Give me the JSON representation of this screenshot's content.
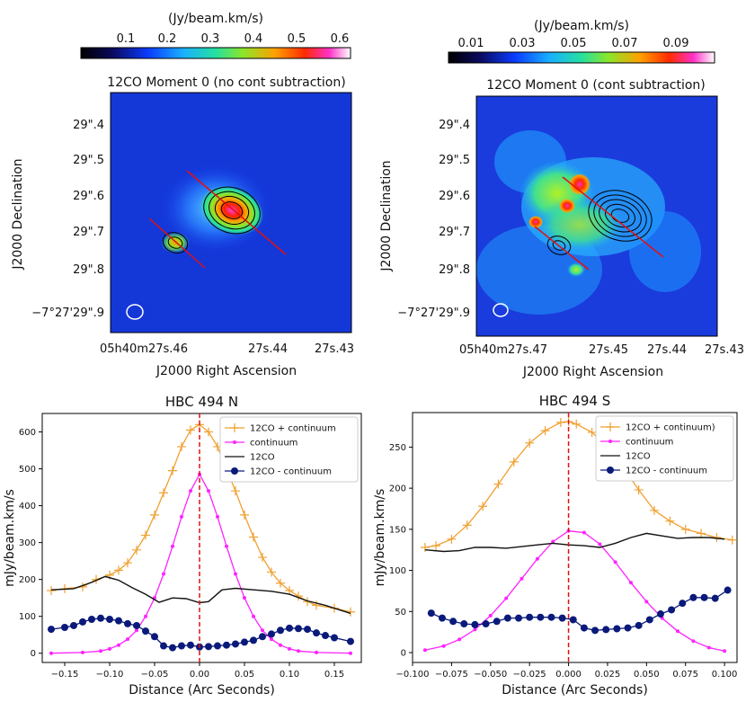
{
  "colorbar_unit": "(Jy/beam.km/s)",
  "colorbars": [
    {
      "ticks": [
        "0.1",
        "0.2",
        "0.3",
        "0.4",
        "0.5",
        "0.6"
      ]
    },
    {
      "ticks": [
        "0.01",
        "0.03",
        "0.05",
        "0.07",
        "0.09"
      ]
    }
  ],
  "maps": [
    {
      "title": "12CO Moment 0 (no cont subtraction)",
      "dec_ticks": [
        "29\".4",
        "29\".5",
        "29\".6",
        "29\".7",
        "29\".8",
        "−7°27'29\".9"
      ],
      "ra_ticks": [
        "05h40m27s.46",
        "27s.44",
        "27s.43"
      ],
      "xlabel": "J2000 Right Ascension",
      "ylabel": "J2000 Declination"
    },
    {
      "title": "12CO Moment 0 (cont subtraction)",
      "dec_ticks": [
        "29\".4",
        "29\".5",
        "29\".6",
        "29\".7",
        "29\".8",
        "−7°27'29\".9"
      ],
      "ra_ticks": [
        "05h40m27s.47",
        "27s.45",
        "27s.44",
        "27s.43"
      ],
      "xlabel": "J2000 Right Ascension",
      "ylabel": "J2000 Declination"
    }
  ],
  "colors": {
    "orange": "#f0a030",
    "magenta": "#ff22ff",
    "black": "#111111",
    "navy": "#0a1a7a",
    "red": "#e01010"
  },
  "chart_data": [
    {
      "type": "line",
      "title": "HBC 494 N",
      "xlabel": "Distance (Arc Seconds)",
      "ylabel": "mJy/beam.km/s",
      "xlim": [
        -0.175,
        0.18
      ],
      "ylim": [
        -25,
        650
      ],
      "xticks": [
        -0.15,
        -0.1,
        -0.05,
        0.0,
        0.05,
        0.1,
        0.15
      ],
      "xtick_labels": [
        "−0.15",
        "−0.10",
        "−0.05",
        "0.00",
        "0.05",
        "0.10",
        "0.15"
      ],
      "yticks": [
        0,
        100,
        200,
        300,
        400,
        500,
        600
      ],
      "ytick_labels": [
        "0",
        "100",
        "200",
        "300",
        "400",
        "500",
        "600"
      ],
      "vline_x": 0,
      "series": [
        {
          "name": "12CO + continuum",
          "style": "plus",
          "color": "#f0a030",
          "x": [
            -0.165,
            -0.15,
            -0.13,
            -0.115,
            -0.1,
            -0.09,
            -0.08,
            -0.07,
            -0.06,
            -0.05,
            -0.04,
            -0.03,
            -0.02,
            -0.01,
            0.0,
            0.01,
            0.02,
            0.03,
            0.04,
            0.05,
            0.06,
            0.07,
            0.08,
            0.09,
            0.1,
            0.11,
            0.12,
            0.13,
            0.15,
            0.168
          ],
          "y": [
            170,
            175,
            180,
            200,
            212,
            225,
            245,
            280,
            320,
            375,
            435,
            495,
            560,
            605,
            620,
            600,
            560,
            500,
            440,
            375,
            315,
            260,
            220,
            190,
            170,
            155,
            140,
            130,
            122,
            112
          ]
        },
        {
          "name": "continuum",
          "style": "smalldot",
          "color": "#ff22ff",
          "x": [
            -0.165,
            -0.13,
            -0.11,
            -0.1,
            -0.09,
            -0.08,
            -0.07,
            -0.06,
            -0.05,
            -0.04,
            -0.03,
            -0.02,
            -0.01,
            0.0,
            0.01,
            0.02,
            0.03,
            0.04,
            0.05,
            0.06,
            0.07,
            0.08,
            0.09,
            0.1,
            0.11,
            0.13,
            0.168
          ],
          "y": [
            0,
            2,
            6,
            12,
            22,
            38,
            62,
            100,
            150,
            215,
            290,
            370,
            440,
            485,
            440,
            370,
            290,
            215,
            150,
            100,
            62,
            38,
            22,
            12,
            6,
            2,
            0
          ]
        },
        {
          "name": "12CO",
          "style": "line",
          "color": "#111111",
          "x": [
            -0.165,
            -0.14,
            -0.12,
            -0.105,
            -0.09,
            -0.075,
            -0.06,
            -0.045,
            -0.03,
            -0.015,
            0.0,
            0.01,
            0.025,
            0.04,
            0.06,
            0.08,
            0.1,
            0.12,
            0.14,
            0.168
          ],
          "y": [
            172,
            175,
            192,
            208,
            198,
            178,
            160,
            138,
            150,
            148,
            137,
            140,
            172,
            176,
            172,
            168,
            160,
            142,
            130,
            108
          ]
        },
        {
          "name": "12CO - continuum",
          "style": "bigdot",
          "color": "#0a1a7a",
          "x": [
            -0.165,
            -0.15,
            -0.14,
            -0.13,
            -0.12,
            -0.11,
            -0.1,
            -0.09,
            -0.08,
            -0.07,
            -0.06,
            -0.05,
            -0.04,
            -0.03,
            -0.02,
            -0.01,
            0.0,
            0.01,
            0.02,
            0.03,
            0.04,
            0.05,
            0.06,
            0.07,
            0.08,
            0.09,
            0.1,
            0.11,
            0.12,
            0.13,
            0.14,
            0.15,
            0.168
          ],
          "y": [
            65,
            70,
            75,
            85,
            92,
            95,
            92,
            88,
            80,
            75,
            60,
            45,
            20,
            15,
            20,
            22,
            17,
            18,
            20,
            22,
            25,
            30,
            35,
            45,
            52,
            62,
            68,
            67,
            65,
            55,
            48,
            42,
            32
          ]
        }
      ]
    },
    {
      "type": "line",
      "title": "HBC 494 S",
      "xlabel": "Distance (Arc Seconds)",
      "ylabel": "mJy/beam.km/s",
      "xlim": [
        -0.1,
        0.108
      ],
      "ylim": [
        -12,
        292
      ],
      "xticks": [
        -0.1,
        -0.075,
        -0.05,
        -0.025,
        0.0,
        0.025,
        0.05,
        0.075,
        0.1
      ],
      "xtick_labels": [
        "−0.100",
        "−0.075",
        "−0.050",
        "−0.025",
        "0.000",
        "0.025",
        "0.050",
        "0.075",
        "0.100"
      ],
      "yticks": [
        0,
        50,
        100,
        150,
        200,
        250
      ],
      "ytick_labels": [
        "0",
        "50",
        "100",
        "150",
        "200",
        "250"
      ],
      "vline_x": 0,
      "series": [
        {
          "name": "12CO + continuum)",
          "style": "plus",
          "color": "#f0a030",
          "x": [
            -0.092,
            -0.085,
            -0.075,
            -0.065,
            -0.055,
            -0.045,
            -0.035,
            -0.025,
            -0.015,
            -0.005,
            0.0,
            0.005,
            0.015,
            0.025,
            0.035,
            0.045,
            0.055,
            0.065,
            0.075,
            0.085,
            0.095,
            0.105
          ],
          "y": [
            128,
            130,
            138,
            155,
            178,
            205,
            232,
            255,
            270,
            280,
            281,
            278,
            268,
            250,
            225,
            198,
            173,
            160,
            150,
            145,
            140,
            137
          ]
        },
        {
          "name": "continuum",
          "style": "smalldot",
          "color": "#ff22ff",
          "x": [
            -0.092,
            -0.08,
            -0.07,
            -0.06,
            -0.05,
            -0.04,
            -0.03,
            -0.02,
            -0.01,
            0.0,
            0.01,
            0.02,
            0.03,
            0.04,
            0.05,
            0.06,
            0.07,
            0.08,
            0.09,
            0.1
          ],
          "y": [
            3,
            8,
            16,
            28,
            45,
            66,
            90,
            114,
            135,
            148,
            146,
            132,
            110,
            85,
            62,
            42,
            26,
            14,
            6,
            2
          ]
        },
        {
          "name": "12CO",
          "style": "line",
          "color": "#111111",
          "x": [
            -0.092,
            -0.08,
            -0.07,
            -0.06,
            -0.05,
            -0.04,
            -0.03,
            -0.02,
            -0.01,
            0.0,
            0.01,
            0.02,
            0.03,
            0.04,
            0.05,
            0.06,
            0.07,
            0.08,
            0.09,
            0.1
          ],
          "y": [
            125,
            123,
            124,
            128,
            128,
            127,
            129,
            131,
            133,
            131,
            130,
            128,
            133,
            140,
            145,
            142,
            139,
            140,
            140,
            138
          ]
        },
        {
          "name": "12CO - continuum",
          "style": "bigdot",
          "color": "#0a1a7a",
          "x": [
            -0.088,
            -0.081,
            -0.074,
            -0.067,
            -0.06,
            -0.053,
            -0.046,
            -0.039,
            -0.032,
            -0.025,
            -0.018,
            -0.011,
            -0.004,
            0.003,
            0.01,
            0.017,
            0.024,
            0.031,
            0.038,
            0.045,
            0.052,
            0.059,
            0.066,
            0.073,
            0.08,
            0.087,
            0.094,
            0.102
          ],
          "y": [
            48,
            42,
            38,
            35,
            34,
            35,
            38,
            42,
            42,
            43,
            43,
            43,
            42,
            40,
            30,
            27,
            28,
            29,
            30,
            33,
            40,
            47,
            52,
            60,
            67,
            67,
            66,
            76
          ]
        }
      ]
    }
  ]
}
